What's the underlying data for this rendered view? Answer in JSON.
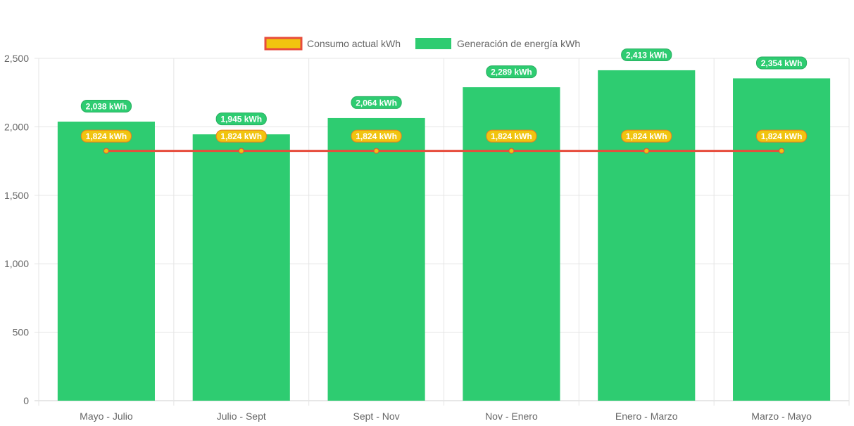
{
  "chart_data": {
    "type": "bar",
    "categories": [
      "Mayo - Julio",
      "Julio - Sept",
      "Sept - Nov",
      "Nov - Enero",
      "Enero - Marzo",
      "Marzo - Mayo"
    ],
    "series": [
      {
        "name": "Consumo actual kWh",
        "type": "line",
        "values": [
          1824,
          1824,
          1824,
          1824,
          1824,
          1824
        ],
        "data_labels": [
          "1,824 kWh",
          "1,824 kWh",
          "1,824 kWh",
          "1,824 kWh",
          "1,824 kWh",
          "1,824 kWh"
        ],
        "line_color": "#e74c3c",
        "fill_color": "#f1c40f"
      },
      {
        "name": "Generación de energía kWh",
        "type": "bar",
        "values": [
          2038,
          1945,
          2064,
          2289,
          2413,
          2354
        ],
        "data_labels": [
          "2,038 kWh",
          "1,945 kWh",
          "2,064 kWh",
          "2,289 kWh",
          "2,413 kWh",
          "2,354 kWh"
        ],
        "color": "#2ecc71"
      }
    ],
    "y_ticks": [
      "0",
      "500",
      "1,000",
      "1,500",
      "2,000",
      "2,500"
    ],
    "ylim": [
      0,
      2500
    ],
    "grid": true,
    "legend_position": "top-center"
  }
}
